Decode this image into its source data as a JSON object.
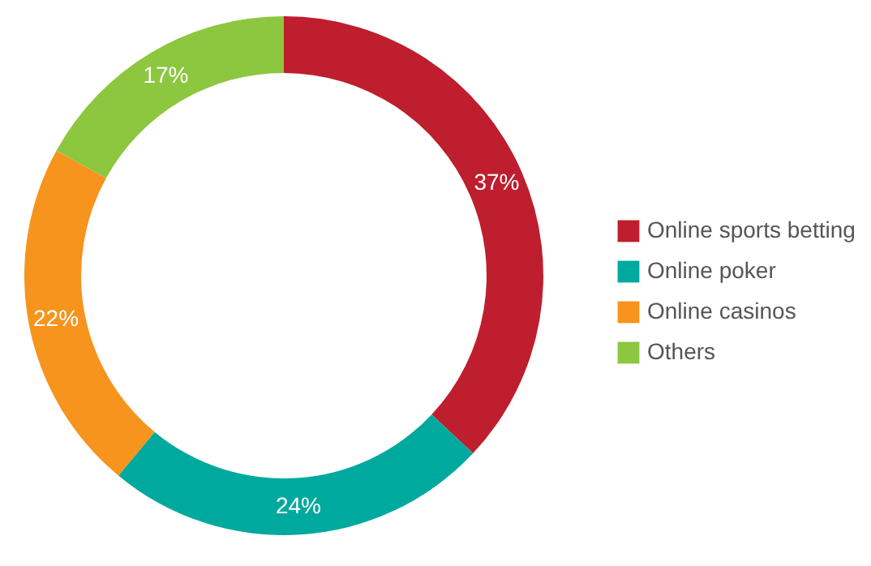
{
  "chart_data": {
    "type": "donut",
    "categories": [
      "Online sports betting",
      "Online poker",
      "Online casinos",
      "Others"
    ],
    "values": [
      37,
      24,
      22,
      17
    ],
    "value_labels": [
      "37%",
      "24%",
      "22%",
      "17%"
    ],
    "colors": [
      "#be1e2d",
      "#00a99d",
      "#f7941d",
      "#8dc63f"
    ],
    "legend": "right"
  }
}
